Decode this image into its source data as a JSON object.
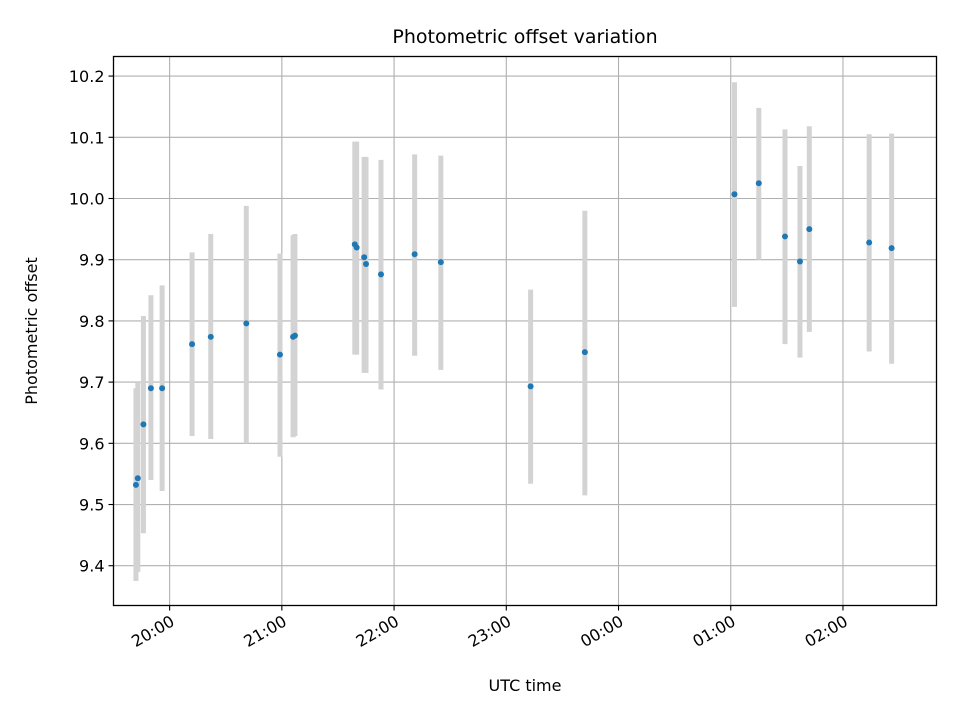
{
  "chart_data": {
    "type": "scatter",
    "title": "Photometric offset variation",
    "xlabel": "UTC time",
    "ylabel": "Photometric offset",
    "x_ticks": [
      "20:00",
      "21:00",
      "22:00",
      "23:00",
      "00:00",
      "01:00",
      "02:00"
    ],
    "y_ticks": [
      "9.4",
      "9.5",
      "9.6",
      "9.7",
      "9.8",
      "9.9",
      "10.0",
      "10.1",
      "10.2"
    ],
    "xlim": [
      "19:30",
      "02:50"
    ],
    "ylim": [
      9.335,
      10.232
    ],
    "grid": true,
    "series": [
      {
        "marker_color": "#1f77b4",
        "errorbar_color": "#d3d3d3",
        "points": [
          {
            "x": "19:42",
            "y": 9.532,
            "ylow": 9.375,
            "yhigh": 9.69
          },
          {
            "x": "19:43",
            "y": 9.543,
            "ylow": 9.39,
            "yhigh": 9.7
          },
          {
            "x": "19:46",
            "y": 9.631,
            "ylow": 9.453,
            "yhigh": 9.808
          },
          {
            "x": "19:50",
            "y": 9.69,
            "ylow": 9.54,
            "yhigh": 9.842
          },
          {
            "x": "19:56",
            "y": 9.69,
            "ylow": 9.522,
            "yhigh": 9.858
          },
          {
            "x": "20:12",
            "y": 9.762,
            "ylow": 9.612,
            "yhigh": 9.912
          },
          {
            "x": "20:22",
            "y": 9.774,
            "ylow": 9.607,
            "yhigh": 9.942
          },
          {
            "x": "20:41",
            "y": 9.796,
            "ylow": 9.6,
            "yhigh": 9.988
          },
          {
            "x": "20:59",
            "y": 9.745,
            "ylow": 9.578,
            "yhigh": 9.91
          },
          {
            "x": "21:06",
            "y": 9.774,
            "ylow": 9.61,
            "yhigh": 9.94
          },
          {
            "x": "21:07",
            "y": 9.776,
            "ylow": 9.612,
            "yhigh": 9.942
          },
          {
            "x": "21:39",
            "y": 9.925,
            "ylow": 9.745,
            "yhigh": 10.093
          },
          {
            "x": "21:40",
            "y": 9.92,
            "ylow": 9.745,
            "yhigh": 10.093
          },
          {
            "x": "21:44",
            "y": 9.904,
            "ylow": 9.715,
            "yhigh": 10.068
          },
          {
            "x": "21:45",
            "y": 9.893,
            "ylow": 9.715,
            "yhigh": 10.068
          },
          {
            "x": "21:53",
            "y": 9.876,
            "ylow": 9.688,
            "yhigh": 10.063
          },
          {
            "x": "22:11",
            "y": 9.909,
            "ylow": 9.743,
            "yhigh": 10.072
          },
          {
            "x": "22:25",
            "y": 9.896,
            "ylow": 9.72,
            "yhigh": 10.07
          },
          {
            "x": "23:13",
            "y": 9.693,
            "ylow": 9.534,
            "yhigh": 9.851
          },
          {
            "x": "23:42",
            "y": 9.749,
            "ylow": 9.515,
            "yhigh": 9.98
          },
          {
            "x": "01:02",
            "y": 10.007,
            "ylow": 9.823,
            "yhigh": 10.19
          },
          {
            "x": "01:15",
            "y": 10.025,
            "ylow": 9.9,
            "yhigh": 10.148
          },
          {
            "x": "01:29",
            "y": 9.938,
            "ylow": 9.762,
            "yhigh": 10.113
          },
          {
            "x": "01:37",
            "y": 9.897,
            "ylow": 9.74,
            "yhigh": 10.053
          },
          {
            "x": "01:42",
            "y": 9.95,
            "ylow": 9.782,
            "yhigh": 10.118
          },
          {
            "x": "02:14",
            "y": 9.928,
            "ylow": 9.75,
            "yhigh": 10.105
          },
          {
            "x": "02:26",
            "y": 9.919,
            "ylow": 9.73,
            "yhigh": 10.106
          }
        ]
      }
    ]
  }
}
